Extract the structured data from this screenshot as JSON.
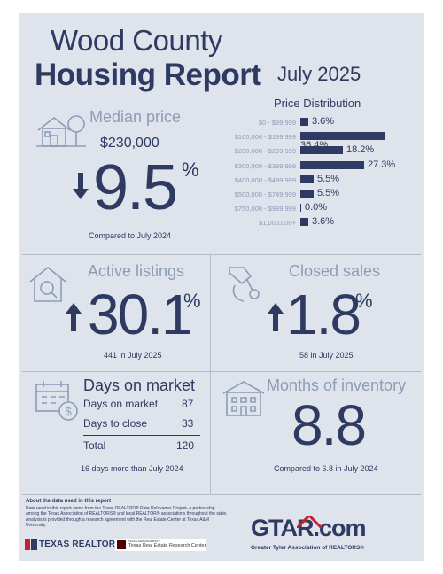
{
  "header": {
    "title_line1": "Wood County",
    "title_line2": "Housing Report",
    "month": "July 2025"
  },
  "price_distribution": {
    "title": "Price Distribution",
    "rows": [
      {
        "range": "$0 - $99,999",
        "value": "3.6%"
      },
      {
        "range": "$100,000 - $199,999",
        "value": "36.4%"
      },
      {
        "range": "$200,000 - $299,999",
        "value": "18.2%"
      },
      {
        "range": "$300,000 - $399,999",
        "value": "27.3%"
      },
      {
        "range": "$400,000 - $499,999",
        "value": "5.5%"
      },
      {
        "range": "$500,000 - $749,999",
        "value": "5.5%"
      },
      {
        "range": "$750,000 - $999,999",
        "value": "0.0%"
      },
      {
        "range": "$1,000,000+",
        "value": "3.6%"
      }
    ]
  },
  "chart_data": {
    "type": "bar",
    "title": "Price Distribution",
    "categories": [
      "$0 - $99,999",
      "$100,000 - $199,999",
      "$200,000 - $299,999",
      "$300,000 - $399,999",
      "$400,000 - $499,999",
      "$500,000 - $749,999",
      "$750,000 - $999,999",
      "$1,000,000+"
    ],
    "values": [
      3.6,
      36.4,
      18.2,
      27.3,
      5.5,
      5.5,
      0.0,
      3.6
    ],
    "orientation": "horizontal",
    "bar_color": "#2e3a62"
  },
  "median_price": {
    "label": "Median price",
    "price": "$230,000",
    "change": "9.5",
    "unit": "%",
    "direction": "down",
    "comparison": "Compared to July 2024"
  },
  "active_listings": {
    "label": "Active listings",
    "change": "30.1",
    "unit": "%",
    "direction": "up",
    "comparison": "441 in July 2025"
  },
  "closed_sales": {
    "label": "Closed sales",
    "change": "1.8",
    "unit": "%",
    "direction": "up",
    "comparison": "58 in July 2025"
  },
  "days_on_market": {
    "label": "Days on market",
    "rows": [
      {
        "label": "Days on market",
        "value": "87"
      },
      {
        "label": "Days to close",
        "value": "33"
      }
    ],
    "total_label": "Total",
    "total_value": "120",
    "comparison": "16 days more than July 2024"
  },
  "months_inventory": {
    "label": "Months of inventory",
    "value": "8.8",
    "comparison": "Compared to 6.8 in July 2024"
  },
  "footer": {
    "about_title": "About the data used in this report",
    "about_text": "Data used in this report come from the Texas REALTOR® Data Relevance Project, a partnership among the Texas Association of REALTORS® and local REALTOR® associations throughout the state. Analysis is provided through a research agreement with the Real Estate Center at Texas A&M University.",
    "texas_realtors": "TEXAS REALTORS",
    "tamu_small": "TEXAS A&M UNIVERSITY",
    "tamu_center": "Texas Real Estate Research Center",
    "gtar_logo": "GTAR.com",
    "gtar_sub": "Greater Tyler Association of REALTORS®"
  },
  "colors": {
    "navy": "#2e3a62",
    "muted": "#8d9cb7",
    "background": "#dfe3eb",
    "gtar_red": "#c8202f"
  }
}
